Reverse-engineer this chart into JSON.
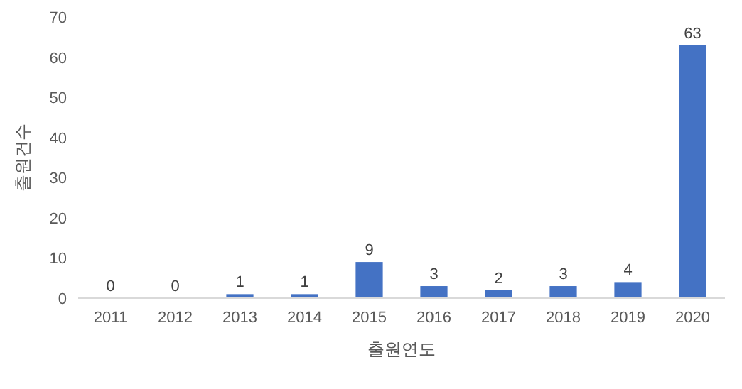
{
  "chart_data": {
    "type": "bar",
    "xlabel": "출원연도",
    "ylabel": "출원건수",
    "categories": [
      "2011",
      "2012",
      "2013",
      "2014",
      "2015",
      "2016",
      "2017",
      "2018",
      "2019",
      "2020"
    ],
    "values": [
      0,
      0,
      1,
      1,
      9,
      3,
      2,
      3,
      4,
      63
    ],
    "color": "#4472c4",
    "ylim": [
      0,
      70
    ],
    "yticks": [
      0,
      10,
      20,
      30,
      40,
      50,
      60,
      70
    ],
    "data_labels": true
  }
}
